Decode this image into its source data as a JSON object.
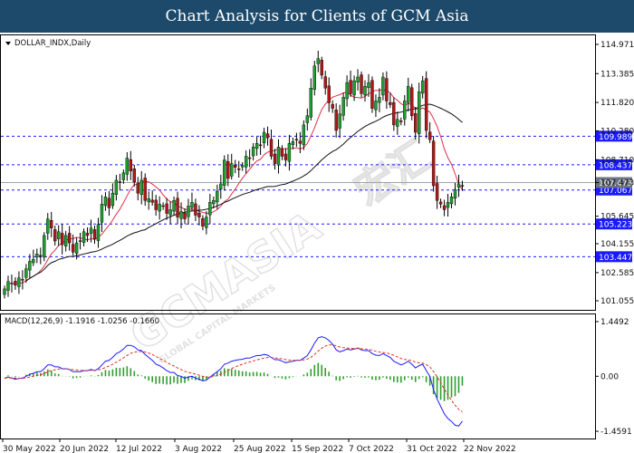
{
  "header": {
    "title": "Chart Analysis for Clients of GCM Asia"
  },
  "watermark": {
    "text": "GCMASIA",
    "subtext": "GLOBAL CAPITAL MARKETS",
    "chinese": "宏汇"
  },
  "chart_data": [
    {
      "type": "candlestick",
      "symbol_label": "DOLLAR_INDX,Daily",
      "ylim": [
        101.055,
        114.971
      ],
      "y_ticks": [
        "114.971",
        "113.385",
        "111.820",
        "110.280",
        "108.710",
        "107.473",
        "105.645",
        "104.155",
        "102.585",
        "101.055"
      ],
      "levels": [
        {
          "value": 109.989,
          "label": "109.989",
          "color": "#1a1aff"
        },
        {
          "value": 108.437,
          "label": "108.437",
          "color": "#1a1aff"
        },
        {
          "value": 107.067,
          "label": "107.067",
          "color": "#1a1aff"
        },
        {
          "value": 105.223,
          "label": "105.223",
          "color": "#1a1aff"
        },
        {
          "value": 103.447,
          "label": "103.447",
          "color": "#1a1aff"
        }
      ],
      "current_price": {
        "value": 107.473,
        "label": "107.473"
      },
      "x_labels": [
        "30 May 2022",
        "20 Jun 2022",
        "12 Jul 2022",
        "3 Aug 2022",
        "25 Aug 2022",
        "15 Sep 2022",
        "7 Oct 2022",
        "31 Oct 2022",
        "22 Nov 2022"
      ],
      "close": [
        101.7,
        102.1,
        102.0,
        101.9,
        102.3,
        102.2,
        102.8,
        103.2,
        103.3,
        103.6,
        103.5,
        104.6,
        105.5,
        105.0,
        104.3,
        104.8,
        104.1,
        104.6,
        104.2,
        103.7,
        104.2,
        104.3,
        104.8,
        104.6,
        105.0,
        104.4,
        105.2,
        106.3,
        106.7,
        106.1,
        106.9,
        107.6,
        107.5,
        108.0,
        108.8,
        108.1,
        107.5,
        106.9,
        107.6,
        106.5,
        106.6,
        106.4,
        106.0,
        106.3,
        106.2,
        105.8,
        106.0,
        106.5,
        105.6,
        105.9,
        105.5,
        106.2,
        106.4,
        105.7,
        105.6,
        105.1,
        105.6,
        106.4,
        106.5,
        107.0,
        107.4,
        108.7,
        107.7,
        108.5,
        108.3,
        108.2,
        108.4,
        108.9,
        108.8,
        109.4,
        109.6,
        109.5,
        110.2,
        109.9,
        108.9,
        108.5,
        109.4,
        108.9,
        108.7,
        109.6,
        109.7,
        109.8,
        109.6,
        110.6,
        111.1,
        112.6,
        113.8,
        114.2,
        113.3,
        112.6,
        111.8,
        111.5,
        110.3,
        111.2,
        112.1,
        112.9,
        112.3,
        113.0,
        113.2,
        112.3,
        112.7,
        112.9,
        111.5,
        111.9,
        112.1,
        113.2,
        111.9,
        111.7,
        110.6,
        110.9,
        110.8,
        111.9,
        112.7,
        111.1,
        110.2,
        112.4,
        113.0,
        110.3,
        109.8,
        107.3,
        106.5,
        106.3,
        106.0,
        106.4,
        106.7,
        107.1,
        107.4,
        107.3
      ],
      "indicators": [
        "MA fast (red)",
        "MA slow (black)"
      ]
    },
    {
      "type": "bar+line",
      "label": "MACD(12,26,9) -1.1916 -1.0256 -0.1660",
      "ylim": [
        -1.4591,
        1.4492
      ],
      "y_ticks": [
        "1.4492",
        "0.00",
        "-1.4591"
      ],
      "histogram_color": "#2f9e2f",
      "macd_color": "#1a1aff",
      "signal_color": "#e03020",
      "macd": [
        -0.05,
        -0.02,
        -0.05,
        -0.08,
        -0.06,
        -0.05,
        0.0,
        0.05,
        0.08,
        0.12,
        0.12,
        0.2,
        0.3,
        0.3,
        0.25,
        0.25,
        0.2,
        0.2,
        0.18,
        0.12,
        0.12,
        0.12,
        0.15,
        0.15,
        0.18,
        0.15,
        0.2,
        0.3,
        0.4,
        0.42,
        0.5,
        0.6,
        0.65,
        0.72,
        0.82,
        0.82,
        0.78,
        0.7,
        0.68,
        0.58,
        0.5,
        0.42,
        0.32,
        0.28,
        0.22,
        0.15,
        0.1,
        0.1,
        0.02,
        0.0,
        -0.05,
        -0.02,
        0.0,
        -0.05,
        -0.08,
        -0.12,
        -0.1,
        -0.02,
        0.05,
        0.12,
        0.2,
        0.32,
        0.35,
        0.4,
        0.42,
        0.44,
        0.45,
        0.48,
        0.48,
        0.52,
        0.55,
        0.55,
        0.58,
        0.56,
        0.5,
        0.44,
        0.44,
        0.4,
        0.36,
        0.38,
        0.4,
        0.42,
        0.42,
        0.48,
        0.55,
        0.7,
        0.88,
        1.02,
        1.05,
        1.02,
        0.95,
        0.85,
        0.7,
        0.65,
        0.68,
        0.72,
        0.7,
        0.72,
        0.75,
        0.7,
        0.68,
        0.68,
        0.6,
        0.56,
        0.55,
        0.6,
        0.55,
        0.5,
        0.4,
        0.35,
        0.3,
        0.34,
        0.4,
        0.32,
        0.22,
        0.28,
        0.32,
        0.15,
        0.0,
        -0.35,
        -0.6,
        -0.8,
        -1.0,
        -1.12,
        -1.2,
        -1.3,
        -1.32,
        -1.19
      ]
    }
  ]
}
